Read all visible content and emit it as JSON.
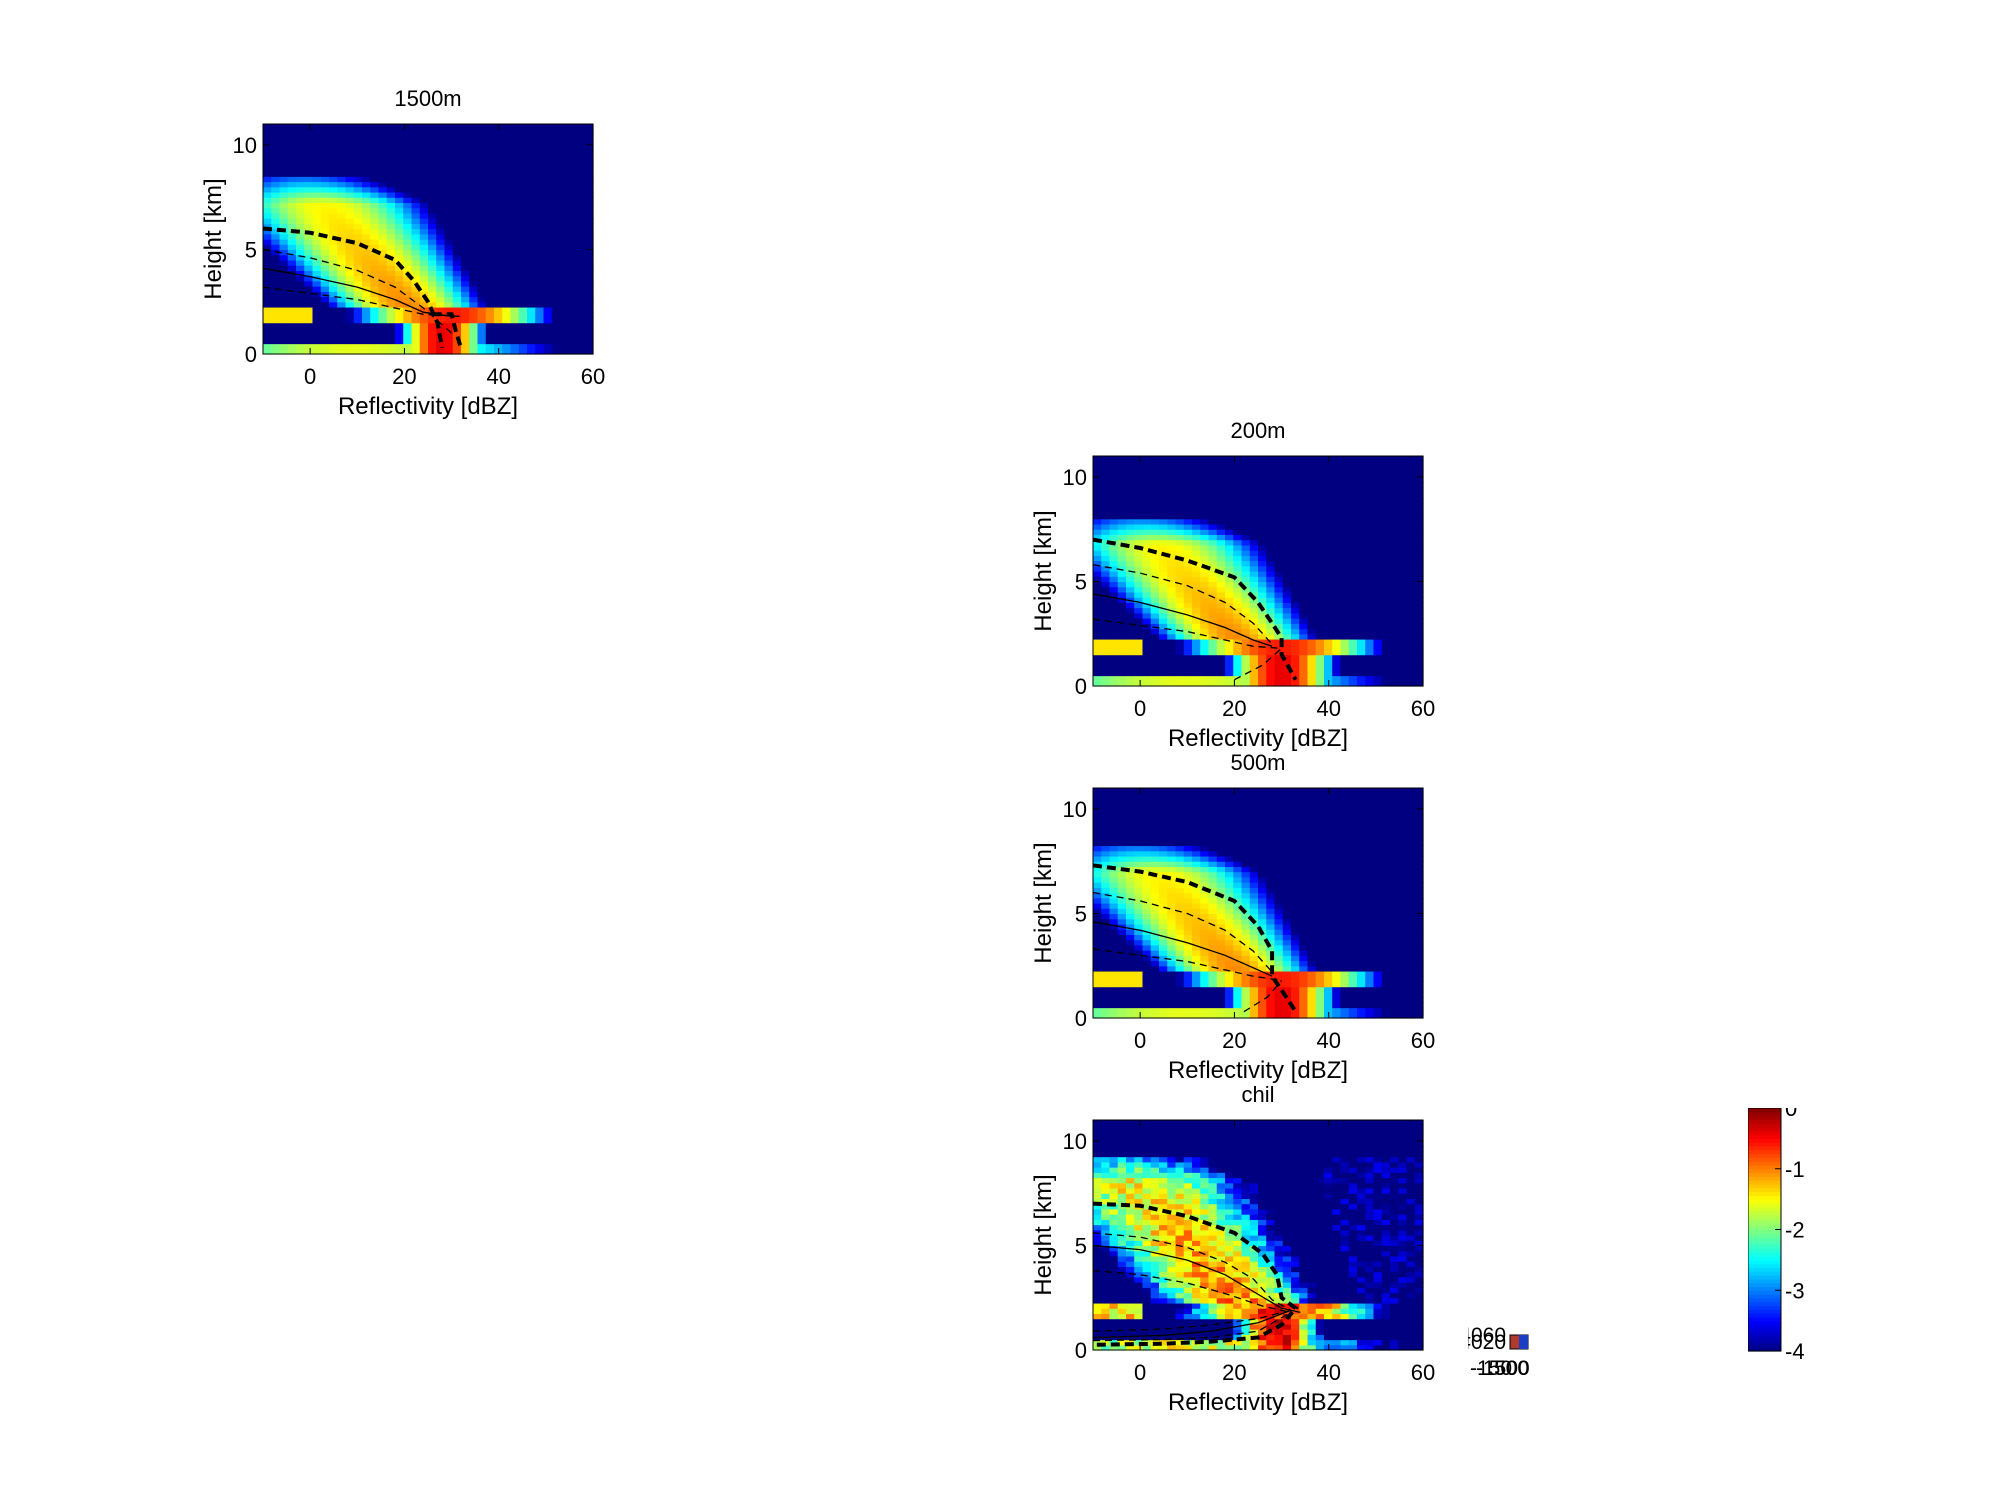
{
  "chart_data": [
    {
      "type": "heatmap",
      "title": "1500m",
      "xlabel": "Reflectivity [dBZ]",
      "ylabel": "Height [km]",
      "xlim": [
        -10,
        60
      ],
      "ylim": [
        0,
        11
      ],
      "xticks": [
        "0",
        "20",
        "40",
        "60"
      ],
      "yticks": [
        "0",
        "5",
        "10"
      ],
      "colormap": "jet",
      "clim": [
        -4,
        0
      ],
      "echo_top_km": 8.4,
      "melting_layer_km": 1.9,
      "surface_mode": {
        "center_dBZ": 28,
        "width_dBZ": 4
      },
      "contours": [
        {
          "style": "thick-dashed",
          "points": [
            [
              -10,
              6.0
            ],
            [
              0,
              5.8
            ],
            [
              10,
              5.3
            ],
            [
              18,
              4.5
            ],
            [
              22,
              3.5
            ],
            [
              25,
              2.5
            ],
            [
              27,
              1.5
            ],
            [
              28,
              0.3
            ]
          ]
        },
        {
          "style": "dashed",
          "points": [
            [
              -10,
              5.0
            ],
            [
              0,
              4.6
            ],
            [
              10,
              4.0
            ],
            [
              18,
              3.2
            ],
            [
              24,
              2.2
            ],
            [
              30,
              1.0
            ]
          ]
        },
        {
          "style": "solid",
          "points": [
            [
              -10,
              4.1
            ],
            [
              0,
              3.7
            ],
            [
              10,
              3.2
            ],
            [
              18,
              2.6
            ],
            [
              24,
              2.0
            ],
            [
              30,
              1.8
            ]
          ]
        },
        {
          "style": "dashed",
          "points": [
            [
              -10,
              3.2
            ],
            [
              0,
              2.9
            ],
            [
              10,
              2.6
            ],
            [
              18,
              2.2
            ],
            [
              24,
              1.9
            ],
            [
              32,
              1.8
            ]
          ]
        },
        {
          "style": "thick-dashed",
          "points": [
            [
              26,
              1.9
            ],
            [
              30,
              1.9
            ],
            [
              31,
              1.0
            ],
            [
              32,
              0.3
            ]
          ]
        }
      ]
    },
    {
      "type": "heatmap",
      "title": "200m",
      "xlabel": "Reflectivity [dBZ]",
      "ylabel": "Height [km]",
      "xlim": [
        -10,
        60
      ],
      "ylim": [
        0,
        11
      ],
      "xticks": [
        "0",
        "20",
        "40",
        "60"
      ],
      "yticks": [
        "0",
        "5",
        "10"
      ],
      "colormap": "jet",
      "clim": [
        -4,
        0
      ],
      "echo_top_km": 8.0,
      "melting_layer_km": 1.9,
      "surface_mode": {
        "center_dBZ": 30,
        "width_dBZ": 5
      },
      "contours": [
        {
          "style": "thick-dashed",
          "points": [
            [
              -10,
              7.0
            ],
            [
              0,
              6.6
            ],
            [
              10,
              6.0
            ],
            [
              20,
              5.2
            ],
            [
              25,
              4.0
            ],
            [
              28,
              3.0
            ],
            [
              30,
              2.3
            ],
            [
              30,
              1.5
            ],
            [
              33,
              0.3
            ]
          ]
        },
        {
          "style": "dashed",
          "points": [
            [
              -10,
              5.8
            ],
            [
              0,
              5.4
            ],
            [
              10,
              4.8
            ],
            [
              18,
              4.0
            ],
            [
              24,
              3.0
            ],
            [
              28,
              2.0
            ]
          ]
        },
        {
          "style": "solid",
          "points": [
            [
              -10,
              4.4
            ],
            [
              0,
              4.0
            ],
            [
              10,
              3.4
            ],
            [
              18,
              2.8
            ],
            [
              24,
              2.2
            ],
            [
              28,
              1.9
            ]
          ]
        },
        {
          "style": "dashed",
          "points": [
            [
              -10,
              3.2
            ],
            [
              0,
              2.9
            ],
            [
              10,
              2.6
            ],
            [
              18,
              2.2
            ],
            [
              24,
              1.9
            ],
            [
              30,
              1.8
            ]
          ]
        },
        {
          "style": "dashed",
          "points": [
            [
              20,
              0.3
            ],
            [
              26,
              1.0
            ],
            [
              30,
              1.8
            ]
          ]
        }
      ]
    },
    {
      "type": "heatmap",
      "title": "500m",
      "xlabel": "Reflectivity [dBZ]",
      "ylabel": "Height [km]",
      "xlim": [
        -10,
        60
      ],
      "ylim": [
        0,
        11
      ],
      "xticks": [
        "0",
        "20",
        "40",
        "60"
      ],
      "yticks": [
        "0",
        "5",
        "10"
      ],
      "colormap": "jet",
      "clim": [
        -4,
        0
      ],
      "echo_top_km": 8.2,
      "melting_layer_km": 1.9,
      "surface_mode": {
        "center_dBZ": 30,
        "width_dBZ": 5
      },
      "contours": [
        {
          "style": "thick-dashed",
          "points": [
            [
              -10,
              7.3
            ],
            [
              0,
              7.0
            ],
            [
              10,
              6.5
            ],
            [
              20,
              5.6
            ],
            [
              25,
              4.4
            ],
            [
              28,
              3.2
            ],
            [
              28,
              2.0
            ],
            [
              31,
              1.0
            ],
            [
              33,
              0.3
            ]
          ]
        },
        {
          "style": "dashed",
          "points": [
            [
              -10,
              6.0
            ],
            [
              0,
              5.6
            ],
            [
              10,
              5.0
            ],
            [
              18,
              4.2
            ],
            [
              24,
              3.2
            ],
            [
              28,
              2.2
            ]
          ]
        },
        {
          "style": "solid",
          "points": [
            [
              -10,
              4.6
            ],
            [
              0,
              4.2
            ],
            [
              10,
              3.6
            ],
            [
              18,
              3.0
            ],
            [
              24,
              2.4
            ],
            [
              28,
              2.0
            ]
          ]
        },
        {
          "style": "dashed",
          "points": [
            [
              -10,
              3.3
            ],
            [
              0,
              3.0
            ],
            [
              10,
              2.7
            ],
            [
              18,
              2.3
            ],
            [
              24,
              2.0
            ],
            [
              30,
              1.8
            ]
          ]
        },
        {
          "style": "dashed",
          "points": [
            [
              22,
              0.3
            ],
            [
              27,
              1.0
            ],
            [
              30,
              1.8
            ]
          ]
        }
      ]
    },
    {
      "type": "heatmap",
      "title": "chil",
      "xlabel": "Reflectivity [dBZ]",
      "ylabel": "Height [km]",
      "xlim": [
        -10,
        60
      ],
      "ylim": [
        0,
        11
      ],
      "xticks": [
        "0",
        "20",
        "40",
        "60"
      ],
      "yticks": [
        "0",
        "5",
        "10"
      ],
      "colormap": "jet",
      "clim": [
        -4,
        0
      ],
      "echo_top_km": 9.3,
      "melting_layer_km": 1.9,
      "noisy": true,
      "contours": [
        {
          "style": "thick-dashed",
          "points": [
            [
              -10,
              7.0
            ],
            [
              0,
              6.9
            ],
            [
              10,
              6.4
            ],
            [
              20,
              5.6
            ],
            [
              26,
              4.6
            ],
            [
              29,
              3.6
            ],
            [
              30,
              2.5
            ],
            [
              33,
              2.0
            ],
            [
              30,
              1.2
            ],
            [
              25,
              0.6
            ],
            [
              15,
              0.4
            ],
            [
              5,
              0.3
            ],
            [
              -10,
              0.25
            ]
          ]
        },
        {
          "style": "dashed",
          "points": [
            [
              -10,
              5.6
            ],
            [
              0,
              5.4
            ],
            [
              10,
              4.9
            ],
            [
              18,
              4.2
            ],
            [
              24,
              3.4
            ],
            [
              28,
              2.4
            ],
            [
              32,
              1.9
            ]
          ]
        },
        {
          "style": "solid",
          "points": [
            [
              -10,
              5.0
            ],
            [
              0,
              4.8
            ],
            [
              10,
              4.3
            ],
            [
              18,
              3.6
            ],
            [
              24,
              2.8
            ],
            [
              30,
              2.0
            ],
            [
              34,
              1.8
            ]
          ]
        },
        {
          "style": "dashed",
          "points": [
            [
              -10,
              3.8
            ],
            [
              0,
              3.6
            ],
            [
              10,
              3.2
            ],
            [
              18,
              2.7
            ],
            [
              26,
              2.1
            ],
            [
              32,
              1.8
            ]
          ]
        },
        {
          "style": "solid",
          "points": [
            [
              -10,
              0.6
            ],
            [
              5,
              0.7
            ],
            [
              15,
              0.9
            ],
            [
              25,
              1.3
            ],
            [
              32,
              1.9
            ]
          ]
        },
        {
          "style": "dashed",
          "points": [
            [
              -10,
              0.9
            ],
            [
              5,
              1.0
            ],
            [
              15,
              1.2
            ],
            [
              25,
              1.5
            ],
            [
              32,
              1.9
            ]
          ]
        },
        {
          "style": "dashed",
          "points": [
            [
              -10,
              0.45
            ],
            [
              5,
              0.5
            ],
            [
              15,
              0.6
            ],
            [
              25,
              0.9
            ],
            [
              32,
              1.8
            ]
          ]
        }
      ]
    }
  ],
  "colorbar": {
    "ticks": [
      "0",
      "-1",
      "-2",
      "-3",
      "-4"
    ],
    "min": -4,
    "max": 0
  },
  "mini_axes": {
    "ytick_overlap": "4060",
    "ytick_overlap_2": "4020",
    "xtick_overlap": "-150",
    "xtick_overlap_2": "-1500",
    "xtick_overlap_3": "500"
  }
}
